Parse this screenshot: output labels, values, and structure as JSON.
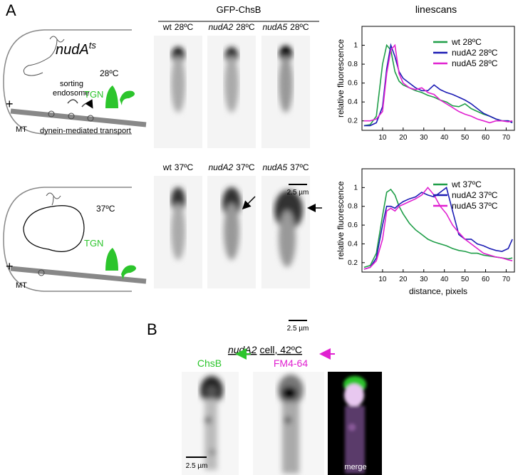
{
  "figure": {
    "panel_a": {
      "label": "A",
      "diagram": {
        "title": "nudA",
        "title_superscript": "ts",
        "top": {
          "temperature": "28ºC",
          "sorting_endosome": [
            "sorting",
            "endosome"
          ],
          "tgn": "TGN",
          "plus": "+",
          "mt": "MT",
          "transport": "dynein-mediated transport"
        },
        "bottom": {
          "temperature": "37ºC",
          "tgn": "TGN",
          "plus": "+",
          "mt": "MT"
        }
      },
      "images": {
        "title": "GFP-ChsB",
        "labels": [
          {
            "strain": "wt",
            "strain_italic": false,
            "temp": "28ºC"
          },
          {
            "strain": "nudA2",
            "strain_italic": true,
            "temp": "28ºC"
          },
          {
            "strain": "nudA5",
            "strain_italic": true,
            "temp": "28ºC"
          },
          {
            "strain": "wt",
            "strain_italic": false,
            "temp": "37ºC"
          },
          {
            "strain": "nudA2",
            "strain_italic": true,
            "temp": "37ºC"
          },
          {
            "strain": "nudA5",
            "strain_italic": true,
            "temp": "37ºC"
          }
        ],
        "scale_bars": [
          "2.5 µm",
          "2.5 µm"
        ]
      },
      "linescans_title": "linescans"
    },
    "panel_b": {
      "label": "B",
      "title": {
        "strain": "nudA2",
        "rest": "cell, 42ºC"
      },
      "channels": [
        "ChsB",
        "FM4-64",
        "merge"
      ],
      "scale_bar": "2.5 µm"
    }
  },
  "chart_data": [
    {
      "type": "line",
      "ylabel": "relative fluorescence",
      "x": [
        1,
        4,
        7,
        10,
        12,
        14,
        16,
        18,
        20,
        23,
        26,
        29,
        32,
        35,
        38,
        41,
        44,
        47,
        50,
        53,
        56,
        59,
        62,
        65,
        68,
        71,
        73
      ],
      "series": [
        {
          "name": "wt 28ºC",
          "color": "#1f9e48",
          "values": [
            0.15,
            0.16,
            0.25,
            0.8,
            1.0,
            0.95,
            0.72,
            0.62,
            0.58,
            0.55,
            0.52,
            0.5,
            0.47,
            0.45,
            0.42,
            0.4,
            0.36,
            0.35,
            0.38,
            0.33,
            0.3,
            0.27,
            0.25,
            0.22,
            0.2,
            0.2,
            0.19
          ]
        },
        {
          "name": "nudA2 28ºC",
          "color": "#1c1cb4",
          "values": [
            0.15,
            0.15,
            0.18,
            0.35,
            0.75,
            1.0,
            0.88,
            0.72,
            0.65,
            0.6,
            0.55,
            0.52,
            0.52,
            0.58,
            0.53,
            0.5,
            0.48,
            0.45,
            0.42,
            0.38,
            0.33,
            0.28,
            0.25,
            0.22,
            0.2,
            0.2,
            0.18
          ]
        },
        {
          "name": "nudA5 28ºC",
          "color": "#e020d0",
          "values": [
            0.2,
            0.2,
            0.22,
            0.3,
            0.7,
            0.95,
            1.0,
            0.7,
            0.6,
            0.55,
            0.53,
            0.55,
            0.5,
            0.48,
            0.42,
            0.38,
            0.34,
            0.3,
            0.27,
            0.25,
            0.22,
            0.2,
            0.18,
            0.2,
            0.2,
            0.19,
            0.2
          ]
        }
      ],
      "xlim": [
        0,
        74
      ],
      "ylim": [
        0.1,
        1.2
      ],
      "xticks": [
        10,
        20,
        30,
        40,
        50,
        60,
        70
      ],
      "yticks": [
        0.2,
        0.4,
        0.6,
        0.8,
        1
      ],
      "legend": "upper right"
    },
    {
      "type": "line",
      "xlabel": "distance, pixels",
      "ylabel": "relative fluorescence",
      "x": [
        1,
        4,
        7,
        10,
        12,
        14,
        16,
        18,
        20,
        23,
        26,
        29,
        32,
        35,
        38,
        41,
        44,
        47,
        50,
        53,
        56,
        59,
        62,
        65,
        68,
        71,
        73
      ],
      "series": [
        {
          "name": "wt 37ºC",
          "color": "#1f9e48",
          "values": [
            0.15,
            0.17,
            0.3,
            0.7,
            0.95,
            0.98,
            0.92,
            0.8,
            0.72,
            0.62,
            0.55,
            0.5,
            0.45,
            0.42,
            0.4,
            0.38,
            0.35,
            0.33,
            0.32,
            0.3,
            0.3,
            0.28,
            0.27,
            0.26,
            0.25,
            0.24,
            0.25
          ]
        },
        {
          "name": "nudA2 37ºC",
          "color": "#1c1cb4",
          "values": [
            0.13,
            0.15,
            0.25,
            0.6,
            0.8,
            0.8,
            0.78,
            0.82,
            0.85,
            0.88,
            0.9,
            0.95,
            0.92,
            0.9,
            0.95,
            1.0,
            0.75,
            0.5,
            0.45,
            0.45,
            0.4,
            0.38,
            0.35,
            0.33,
            0.32,
            0.35,
            0.45
          ]
        },
        {
          "name": "nudA5 37ºC",
          "color": "#e020d0",
          "values": [
            0.13,
            0.15,
            0.22,
            0.45,
            0.75,
            0.78,
            0.75,
            0.8,
            0.82,
            0.85,
            0.88,
            0.92,
            1.0,
            0.92,
            0.8,
            0.72,
            0.6,
            0.52,
            0.45,
            0.4,
            0.35,
            0.3,
            0.28,
            0.26,
            0.25,
            0.23,
            0.22
          ]
        }
      ],
      "xlim": [
        0,
        74
      ],
      "ylim": [
        0.1,
        1.2
      ],
      "xticks": [
        10,
        20,
        30,
        40,
        50,
        60,
        70
      ],
      "yticks": [
        0.2,
        0.4,
        0.6,
        0.8,
        1
      ],
      "legend": "upper right"
    }
  ]
}
